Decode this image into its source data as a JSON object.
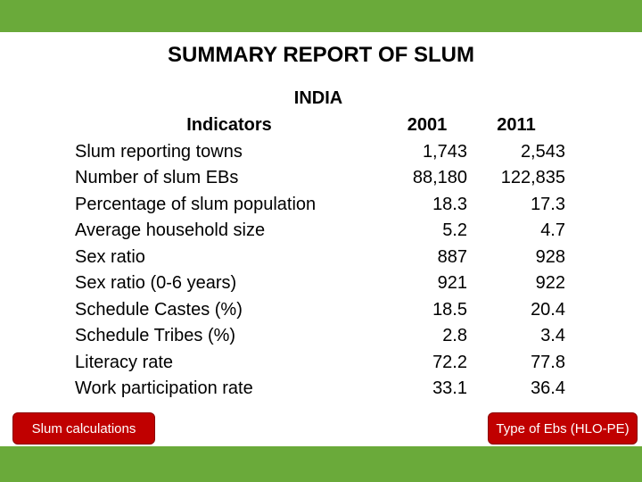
{
  "title": "SUMMARY REPORT OF SLUM",
  "table": {
    "region": "INDIA",
    "header": [
      "Indicators",
      "2001",
      "2011"
    ],
    "rows": [
      [
        "Slum reporting towns",
        "1,743",
        "2,543"
      ],
      [
        "Number of slum EBs",
        "88,180",
        "122,835"
      ],
      [
        "Percentage of slum population",
        "18.3",
        "17.3"
      ],
      [
        "Average household size",
        "5.2",
        "4.7"
      ],
      [
        "Sex ratio",
        "887",
        "928"
      ],
      [
        "Sex ratio (0-6 years)",
        "921",
        "922"
      ],
      [
        "Schedule Castes (%)",
        "18.5",
        "20.4"
      ],
      [
        "Schedule Tribes (%)",
        "2.8",
        "3.4"
      ],
      [
        "Literacy rate",
        "72.2",
        "77.8"
      ],
      [
        "Work participation rate",
        "33.1",
        "36.4"
      ]
    ]
  },
  "buttons": {
    "left": "Slum calculations",
    "right": "Type of Ebs (HLO-PE)"
  }
}
